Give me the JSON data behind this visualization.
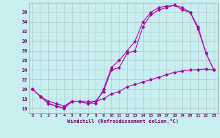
{
  "xlabel": "Windchill (Refroidissement éolien,°C)",
  "background_color": "#c8eef0",
  "grid_color": "#b0c8d0",
  "line_color": "#aa00aa",
  "xlim": [
    -0.5,
    23.5
  ],
  "ylim": [
    15.0,
    38.0
  ],
  "yticks": [
    16,
    18,
    20,
    22,
    24,
    26,
    28,
    30,
    32,
    34,
    36
  ],
  "xticks": [
    0,
    1,
    2,
    3,
    4,
    5,
    6,
    7,
    8,
    9,
    10,
    11,
    12,
    13,
    14,
    15,
    16,
    17,
    18,
    19,
    20,
    21,
    22,
    23
  ],
  "line1_x": [
    0,
    1,
    2,
    3,
    4,
    5,
    6,
    7,
    8,
    9,
    10,
    11,
    12,
    13,
    14,
    15,
    16,
    17,
    18,
    19,
    20,
    21,
    22,
    23
  ],
  "line1_y": [
    20,
    18.5,
    17,
    16.5,
    16,
    17.5,
    17.5,
    17,
    17,
    20,
    24.5,
    26,
    28,
    30,
    34,
    36,
    37,
    37.3,
    37.5,
    36.5,
    36,
    32.5,
    27.5,
    24
  ],
  "line2_x": [
    0,
    1,
    2,
    3,
    4,
    5,
    6,
    7,
    8,
    9,
    10,
    11,
    12,
    13,
    14,
    15,
    16,
    17,
    18,
    19,
    20,
    21,
    22,
    23
  ],
  "line2_y": [
    20,
    18.5,
    17,
    16.5,
    16,
    17.5,
    17.5,
    17,
    17.5,
    19.5,
    24,
    24.5,
    27.5,
    28,
    33,
    35.5,
    36.5,
    37,
    37.5,
    37,
    36,
    33,
    27.5,
    24
  ],
  "line3_x": [
    0,
    1,
    2,
    3,
    4,
    5,
    6,
    7,
    8,
    9,
    10,
    11,
    12,
    13,
    14,
    15,
    16,
    17,
    18,
    19,
    20,
    21,
    22,
    23
  ],
  "line3_y": [
    20,
    18.5,
    17.5,
    17,
    16.5,
    17.5,
    17.5,
    17.5,
    17.5,
    18.0,
    19.0,
    19.5,
    20.5,
    21.0,
    21.5,
    22.0,
    22.5,
    23.0,
    23.5,
    23.8,
    24.0,
    24.1,
    24.2,
    24.0
  ]
}
